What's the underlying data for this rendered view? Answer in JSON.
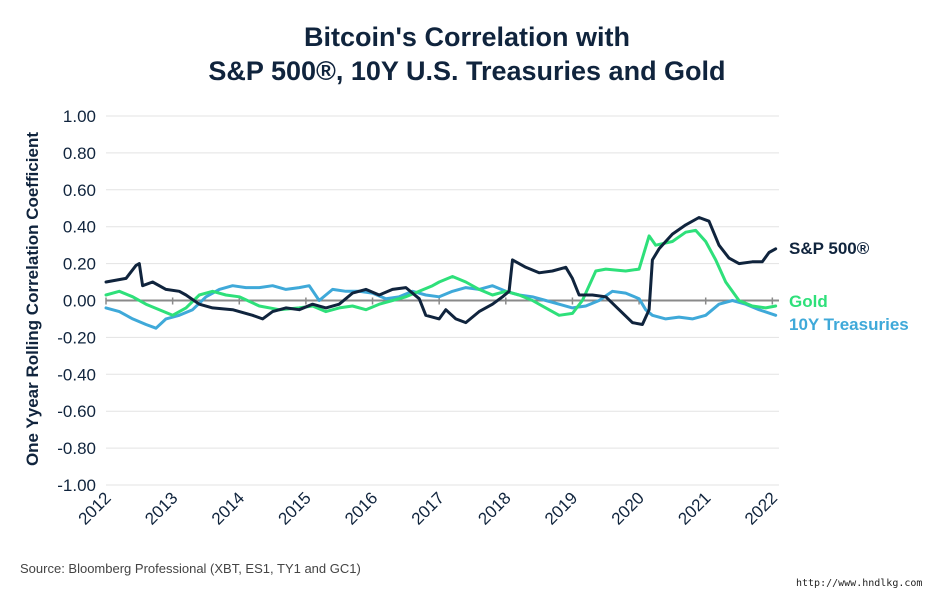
{
  "chart_data": {
    "type": "line",
    "title_line1": "Bitcoin's Correlation with",
    "title_line2": "S&P 500®, 10Y U.S. Treasuries and Gold",
    "ylabel": "One Yyear Rolling Correlation Coefficient",
    "xlabel": "",
    "ylim": [
      -1.0,
      1.0
    ],
    "xlim": [
      2012,
      2022.1
    ],
    "y_ticks": [
      "1.00",
      "0.80",
      "0.60",
      "0.40",
      "0.20",
      "0.00",
      "-0.20",
      "-0.40",
      "-0.60",
      "-0.80",
      "-1.00"
    ],
    "y_tick_values": [
      1.0,
      0.8,
      0.6,
      0.4,
      0.2,
      0.0,
      -0.2,
      -0.4,
      -0.6,
      -0.8,
      -1.0
    ],
    "x_ticks": [
      "2012",
      "2013",
      "2014",
      "2015",
      "2016",
      "2017",
      "2018",
      "2019",
      "2020",
      "2021",
      "2022"
    ],
    "x_tick_values": [
      2012,
      2013,
      2014,
      2015,
      2016,
      2017,
      2018,
      2019,
      2020,
      2021,
      2022
    ],
    "grid": true,
    "legend": "line-end labels on right",
    "series": [
      {
        "name": "S&P 500®",
        "color": "#10243d",
        "x": [
          2012.0,
          2012.3,
          2012.45,
          2012.5,
          2012.55,
          2012.7,
          2012.9,
          2013.1,
          2013.2,
          2013.4,
          2013.6,
          2013.9,
          2014.2,
          2014.35,
          2014.5,
          2014.7,
          2014.9,
          2015.1,
          2015.3,
          2015.5,
          2015.7,
          2015.9,
          2016.1,
          2016.3,
          2016.5,
          2016.7,
          2016.8,
          2017.0,
          2017.1,
          2017.25,
          2017.4,
          2017.6,
          2017.8,
          2017.95,
          2018.05,
          2018.1,
          2018.3,
          2018.5,
          2018.7,
          2018.9,
          2019.0,
          2019.1,
          2019.3,
          2019.5,
          2019.7,
          2019.9,
          2020.05,
          2020.15,
          2020.2,
          2020.3,
          2020.5,
          2020.7,
          2020.9,
          2021.05,
          2021.2,
          2021.35,
          2021.5,
          2021.7,
          2021.85,
          2021.95,
          2022.05
        ],
        "values": [
          0.1,
          0.12,
          0.19,
          0.2,
          0.08,
          0.1,
          0.06,
          0.05,
          0.03,
          -0.02,
          -0.04,
          -0.05,
          -0.08,
          -0.1,
          -0.06,
          -0.04,
          -0.05,
          -0.02,
          -0.04,
          -0.02,
          0.04,
          0.06,
          0.03,
          0.06,
          0.07,
          0.01,
          -0.08,
          -0.1,
          -0.05,
          -0.1,
          -0.12,
          -0.06,
          -0.02,
          0.02,
          0.05,
          0.22,
          0.18,
          0.15,
          0.16,
          0.18,
          0.12,
          0.03,
          0.03,
          0.02,
          -0.05,
          -0.12,
          -0.13,
          -0.05,
          0.22,
          0.28,
          0.36,
          0.41,
          0.45,
          0.43,
          0.3,
          0.23,
          0.2,
          0.21,
          0.21,
          0.26,
          0.28
        ]
      },
      {
        "name": "Gold",
        "color": "#2ee07a",
        "x": [
          2012.0,
          2012.2,
          2012.4,
          2012.6,
          2012.8,
          2013.0,
          2013.2,
          2013.4,
          2013.6,
          2013.8,
          2014.0,
          2014.3,
          2014.6,
          2014.9,
          2015.1,
          2015.3,
          2015.5,
          2015.7,
          2015.9,
          2016.1,
          2016.3,
          2016.5,
          2016.7,
          2016.9,
          2017.0,
          2017.2,
          2017.4,
          2017.6,
          2017.8,
          2018.0,
          2018.2,
          2018.4,
          2018.6,
          2018.8,
          2019.0,
          2019.15,
          2019.35,
          2019.5,
          2019.8,
          2020.0,
          2020.15,
          2020.25,
          2020.5,
          2020.7,
          2020.85,
          2021.0,
          2021.15,
          2021.3,
          2021.5,
          2021.7,
          2021.9,
          2022.05
        ],
        "values": [
          0.03,
          0.05,
          0.02,
          -0.02,
          -0.05,
          -0.08,
          -0.04,
          0.03,
          0.05,
          0.03,
          0.02,
          -0.03,
          -0.05,
          -0.04,
          -0.03,
          -0.06,
          -0.04,
          -0.03,
          -0.05,
          -0.02,
          0.0,
          0.02,
          0.05,
          0.08,
          0.1,
          0.13,
          0.1,
          0.06,
          0.03,
          0.05,
          0.03,
          0.0,
          -0.04,
          -0.08,
          -0.07,
          0.0,
          0.16,
          0.17,
          0.16,
          0.17,
          0.35,
          0.3,
          0.32,
          0.37,
          0.38,
          0.32,
          0.22,
          0.1,
          0.0,
          -0.03,
          -0.04,
          -0.03
        ]
      },
      {
        "name": "10Y Treasuries",
        "color": "#3fa9d9",
        "x": [
          2012.0,
          2012.2,
          2012.4,
          2012.6,
          2012.75,
          2012.9,
          2013.1,
          2013.3,
          2013.5,
          2013.7,
          2013.9,
          2014.1,
          2014.3,
          2014.5,
          2014.7,
          2014.9,
          2015.05,
          2015.2,
          2015.4,
          2015.6,
          2015.8,
          2016.0,
          2016.2,
          2016.4,
          2016.6,
          2016.8,
          2017.0,
          2017.2,
          2017.4,
          2017.6,
          2017.8,
          2018.0,
          2018.2,
          2018.4,
          2018.6,
          2018.8,
          2019.0,
          2019.2,
          2019.4,
          2019.6,
          2019.8,
          2020.0,
          2020.1,
          2020.2,
          2020.4,
          2020.6,
          2020.8,
          2021.0,
          2021.2,
          2021.4,
          2021.6,
          2021.8,
          2022.05
        ],
        "values": [
          -0.04,
          -0.06,
          -0.1,
          -0.13,
          -0.15,
          -0.1,
          -0.08,
          -0.05,
          0.02,
          0.06,
          0.08,
          0.07,
          0.07,
          0.08,
          0.06,
          0.07,
          0.08,
          0.0,
          0.06,
          0.05,
          0.05,
          0.04,
          0.01,
          0.02,
          0.05,
          0.03,
          0.02,
          0.05,
          0.07,
          0.06,
          0.08,
          0.05,
          0.03,
          0.02,
          0.0,
          -0.02,
          -0.04,
          -0.03,
          0.0,
          0.05,
          0.04,
          0.01,
          -0.05,
          -0.08,
          -0.1,
          -0.09,
          -0.1,
          -0.08,
          -0.02,
          0.0,
          -0.02,
          -0.05,
          -0.08
        ]
      }
    ]
  },
  "source": "Source: Bloomberg Professional (XBT, ES1, TY1 and GC1)",
  "watermark": "http://www.hndlkg.com"
}
